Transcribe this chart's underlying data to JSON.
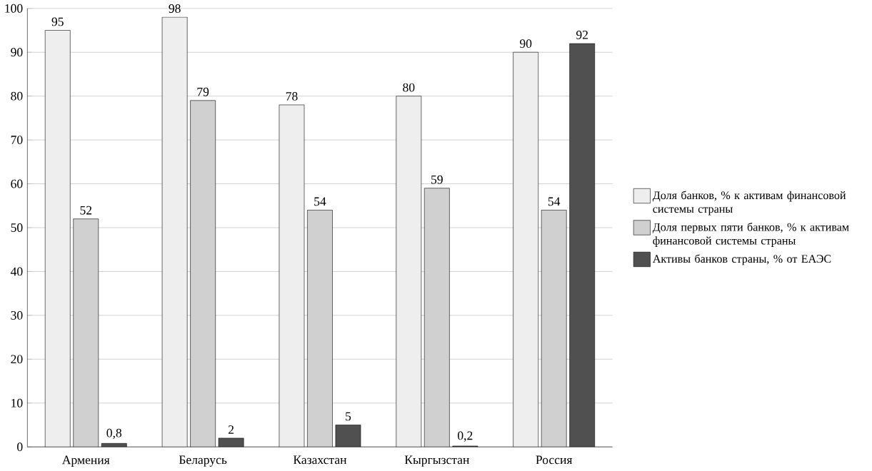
{
  "chart_data": {
    "type": "bar",
    "categories": [
      "Армения",
      "Беларусь",
      "Казахстан",
      "Кыргызстан",
      "Россия"
    ],
    "series": [
      {
        "name": "Доля банков, %  к активам финансовой системы страны",
        "color": "#eeeeee",
        "values": [
          95,
          98,
          78,
          80,
          90
        ],
        "value_labels": [
          "95",
          "98",
          "78",
          "80",
          "90"
        ]
      },
      {
        "name": "Доля первых пяти банков, % к активам финансовой системы страны",
        "color": "#d0d0d0",
        "values": [
          52,
          79,
          54,
          59,
          54
        ],
        "value_labels": [
          "52",
          "79",
          "54",
          "59",
          "54"
        ]
      },
      {
        "name": "Активы банков страны, % от ЕАЭС",
        "color": "#505050",
        "values": [
          0.8,
          2,
          5,
          0.2,
          92
        ],
        "value_labels": [
          "0,8",
          "2",
          "5",
          "0,2",
          "92"
        ]
      }
    ],
    "ylim": [
      0,
      100
    ],
    "yticks": [
      0,
      10,
      20,
      30,
      40,
      50,
      60,
      70,
      80,
      90,
      100
    ],
    "grid": "y",
    "legend": "right"
  }
}
